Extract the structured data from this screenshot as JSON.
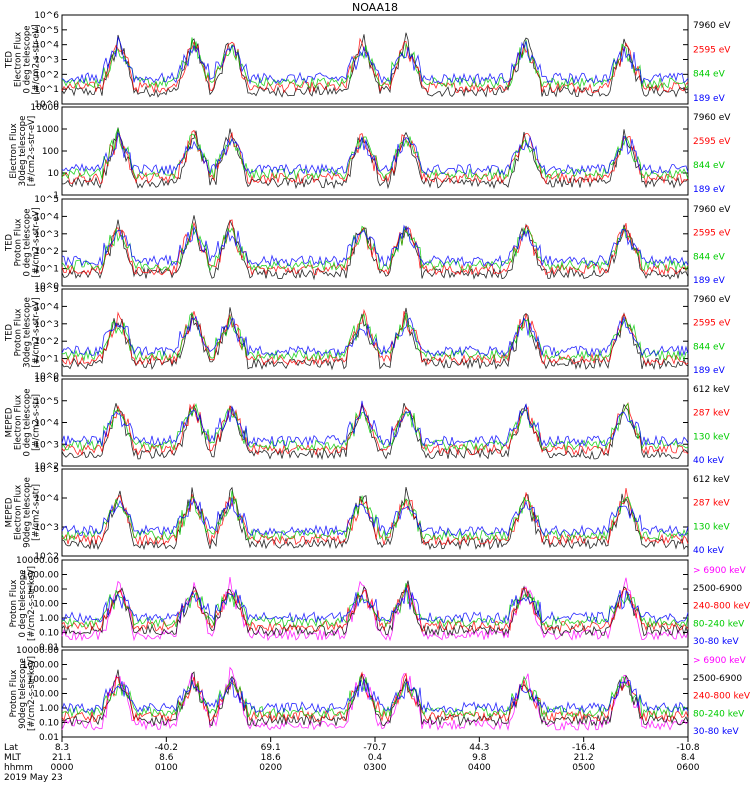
{
  "title": "NOAA18",
  "colors": {
    "blue": "#0000ff",
    "red": "#ff0000",
    "green": "#00cc00",
    "black": "#000000",
    "magenta": "#ff00ff"
  },
  "chart_data": [
    {
      "type": "line",
      "ylabel": [
        "TED",
        "Electron Flux",
        "0 deg telescope",
        "[#/cm2-s-str-eV]"
      ],
      "y_log": true,
      "y_ticks": [
        "10^0",
        "10^1",
        "10^2",
        "10^3",
        "10^4",
        "10^5",
        "10^6"
      ],
      "ylim": [
        1,
        1000000
      ],
      "series": [
        {
          "name": "7960 eV",
          "color": "black"
        },
        {
          "name": "2595 eV",
          "color": "red"
        },
        {
          "name": "844 eV",
          "color": "green"
        },
        {
          "name": "189 eV",
          "color": "blue"
        }
      ]
    },
    {
      "type": "line",
      "ylabel": [
        "Electron Flux",
        "30deg telescope",
        "[#/cm2-s-str-eV]"
      ],
      "y_log": true,
      "y_ticks": [
        "1",
        "10",
        "100",
        "1000",
        "10000"
      ],
      "ylim": [
        1,
        10000
      ],
      "series": [
        {
          "name": "7960 eV",
          "color": "black"
        },
        {
          "name": "2595 eV",
          "color": "red"
        },
        {
          "name": "844 eV",
          "color": "green"
        },
        {
          "name": "189 eV",
          "color": "blue"
        }
      ]
    },
    {
      "type": "line",
      "ylabel": [
        "TED",
        "Proton Flux",
        "0 deg telescope",
        "[#/cm2-s-str-eV]"
      ],
      "y_log": true,
      "y_ticks": [
        "10^0",
        "10^1",
        "10^2",
        "10^3",
        "10^4",
        "10^5"
      ],
      "ylim": [
        1,
        100000
      ],
      "series": [
        {
          "name": "7960 eV",
          "color": "black"
        },
        {
          "name": "2595 eV",
          "color": "red"
        },
        {
          "name": "844 eV",
          "color": "green"
        },
        {
          "name": "189 eV",
          "color": "blue"
        }
      ]
    },
    {
      "type": "line",
      "ylabel": [
        "TED",
        "Proton Flux",
        "30deg telescope",
        "[#/cm2-s-str-eV]"
      ],
      "y_log": true,
      "y_ticks": [
        "10^0",
        "10^1",
        "10^2",
        "10^3",
        "10^4",
        "10^5"
      ],
      "ylim": [
        1,
        100000
      ],
      "series": [
        {
          "name": "7960 eV",
          "color": "black"
        },
        {
          "name": "2595 eV",
          "color": "red"
        },
        {
          "name": "844 eV",
          "color": "green"
        },
        {
          "name": "189 eV",
          "color": "blue"
        }
      ]
    },
    {
      "type": "line",
      "ylabel": [
        "MEPED",
        "Electron Flux",
        "0 deg telescope",
        "[#/cm2-s-str]"
      ],
      "y_log": true,
      "y_ticks": [
        "10^2",
        "10^3",
        "10^4",
        "10^5",
        "10^6"
      ],
      "ylim": [
        100,
        1000000
      ],
      "series": [
        {
          "name": "612 keV",
          "color": "black"
        },
        {
          "name": "287 keV",
          "color": "red"
        },
        {
          "name": "130 keV",
          "color": "green"
        },
        {
          "name": "40 keV",
          "color": "blue"
        }
      ]
    },
    {
      "type": "line",
      "ylabel": [
        "MEPED",
        "Electron Flux",
        "90deg telescope",
        "[#/cm2-s-str]"
      ],
      "y_log": true,
      "y_ticks": [
        "10^2",
        "10^3",
        "10^4",
        "10^5"
      ],
      "ylim": [
        100,
        100000
      ],
      "series": [
        {
          "name": "612 keV",
          "color": "black"
        },
        {
          "name": "287 keV",
          "color": "red"
        },
        {
          "name": "130 keV",
          "color": "green"
        },
        {
          "name": "40 keV",
          "color": "blue"
        }
      ]
    },
    {
      "type": "line",
      "ylabel": [
        "Proton Flux",
        "0 deg telescope",
        "[#/cm2-s-str-keV]"
      ],
      "y_log": true,
      "y_ticks": [
        "0.01",
        "0.10",
        "1.00",
        "10.00",
        "100.00",
        "1000.00",
        "10000.00"
      ],
      "ylim": [
        0.01,
        10000
      ],
      "series": [
        {
          "name": "> 6900 keV",
          "color": "magenta"
        },
        {
          "name": "2500-6900",
          "color": "black"
        },
        {
          "name": "240-800 keV",
          "color": "red"
        },
        {
          "name": "80-240 keV",
          "color": "green"
        },
        {
          "name": "30-80 keV",
          "color": "blue"
        }
      ]
    },
    {
      "type": "line",
      "ylabel": [
        "Proton Flux",
        "90deg telescope",
        "[#/cm2-s-str-keV]"
      ],
      "y_log": true,
      "y_ticks": [
        "0.01",
        "0.10",
        "1.00",
        "10.00",
        "100.00",
        "1000.00",
        "10000.00"
      ],
      "ylim": [
        0.01,
        10000
      ],
      "series": [
        {
          "name": "> 6900 keV",
          "color": "magenta"
        },
        {
          "name": "2500-6900",
          "color": "black"
        },
        {
          "name": "240-800 keV",
          "color": "red"
        },
        {
          "name": "80-240 keV",
          "color": "green"
        },
        {
          "name": "30-80 keV",
          "color": "blue"
        }
      ]
    }
  ],
  "x_axis": {
    "row_labels": [
      "Lat",
      "MLT",
      "hhmm",
      "2019 May 23"
    ],
    "ticks": [
      {
        "lat": "8.3",
        "mlt": "21.1",
        "time": "0000"
      },
      {
        "lat": "-40.2",
        "mlt": "8.6",
        "time": "0100"
      },
      {
        "lat": "69.1",
        "mlt": "18.6",
        "time": "0200"
      },
      {
        "lat": "-70.7",
        "mlt": "0.4",
        "time": "0300"
      },
      {
        "lat": "44.3",
        "mlt": "9.8",
        "time": "0400"
      },
      {
        "lat": "-16.4",
        "mlt": "21.2",
        "time": "0500"
      },
      {
        "lat": "-10.8",
        "mlt": "8.4",
        "time": "0600"
      }
    ]
  }
}
